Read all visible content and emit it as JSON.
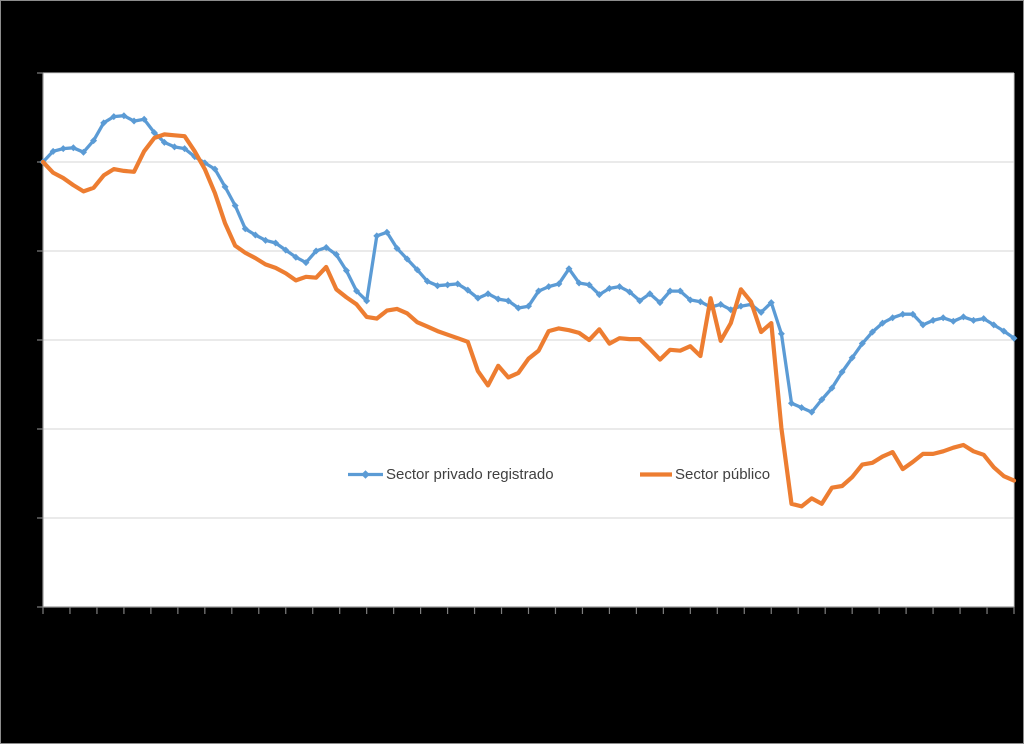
{
  "style": {
    "page_bg": "#000000",
    "frame_border": "#8c8c8c",
    "plot_bg": "#ffffff",
    "gridline": "#d6d6d6",
    "axis": "#9a9a9a",
    "tick": "#7f7f7f",
    "legend_text": "#404040"
  },
  "chart_data": {
    "type": "line",
    "note": "Chart title and axis tick labels are not visible in the image (rendered black on black). Y values are index units estimated from gridlines assuming first point = 100 and gridline step = 10.",
    "n_points": 97,
    "ylim": [
      50,
      110
    ],
    "y_step": 10,
    "grid": "horizontal",
    "tick_labels_visible": false,
    "x_tick_count": 37,
    "legend_position": "inside-middle",
    "series": [
      {
        "name": "Sector privado registrado",
        "color": "#5B9BD5",
        "marker": "diamond",
        "line_width": 3.3,
        "values": [
          100.0,
          101.2,
          101.5,
          101.6,
          101.1,
          102.4,
          104.4,
          105.1,
          105.2,
          104.6,
          104.8,
          103.3,
          102.2,
          101.7,
          101.5,
          100.6,
          99.9,
          99.2,
          97.2,
          95.1,
          92.5,
          91.8,
          91.2,
          90.9,
          90.1,
          89.3,
          88.7,
          90.0,
          90.4,
          89.6,
          87.8,
          85.5,
          84.4,
          91.7,
          92.1,
          90.3,
          89.1,
          87.9,
          86.6,
          86.1,
          86.2,
          86.3,
          85.6,
          84.7,
          85.2,
          84.6,
          84.4,
          83.6,
          83.8,
          85.5,
          86.0,
          86.3,
          88.0,
          86.4,
          86.2,
          85.1,
          85.8,
          86.0,
          85.4,
          84.4,
          85.2,
          84.2,
          85.5,
          85.5,
          84.5,
          84.3,
          83.7,
          84.0,
          83.4,
          83.8,
          84.0,
          83.1,
          84.2,
          80.7,
          72.9,
          72.4,
          71.9,
          73.3,
          74.6,
          76.4,
          78.0,
          79.6,
          80.9,
          81.9,
          82.5,
          82.9,
          82.9,
          81.7,
          82.2,
          82.5,
          82.1,
          82.6,
          82.2,
          82.4,
          81.7,
          81.0,
          80.2
        ]
      },
      {
        "name": "Sector público",
        "color": "#ED7D31",
        "marker": "none",
        "line_width": 4.2,
        "values": [
          100.0,
          98.8,
          98.2,
          97.4,
          96.7,
          97.1,
          98.5,
          99.2,
          99.0,
          98.9,
          101.2,
          102.7,
          103.1,
          103.0,
          102.9,
          101.2,
          99.2,
          96.5,
          93.1,
          90.6,
          89.8,
          89.2,
          88.5,
          88.1,
          87.5,
          86.7,
          87.1,
          87.0,
          88.2,
          85.7,
          84.8,
          84.0,
          82.6,
          82.4,
          83.3,
          83.5,
          83.0,
          82.0,
          81.5,
          81.0,
          80.6,
          80.2,
          79.8,
          76.5,
          74.9,
          77.1,
          75.8,
          76.3,
          77.9,
          78.8,
          81.0,
          81.3,
          81.1,
          80.8,
          80.0,
          81.2,
          79.6,
          80.2,
          80.1,
          80.1,
          79.0,
          77.8,
          78.9,
          78.8,
          79.3,
          78.2,
          84.7,
          79.9,
          81.9,
          85.7,
          84.3,
          80.9,
          81.9,
          70.1,
          61.6,
          61.3,
          62.2,
          61.6,
          63.4,
          63.6,
          64.6,
          66.0,
          66.2,
          66.9,
          67.4,
          65.5,
          66.3,
          67.2,
          67.2,
          67.5,
          67.9,
          68.2,
          67.5,
          67.1,
          65.7,
          64.7,
          64.2
        ]
      }
    ]
  }
}
